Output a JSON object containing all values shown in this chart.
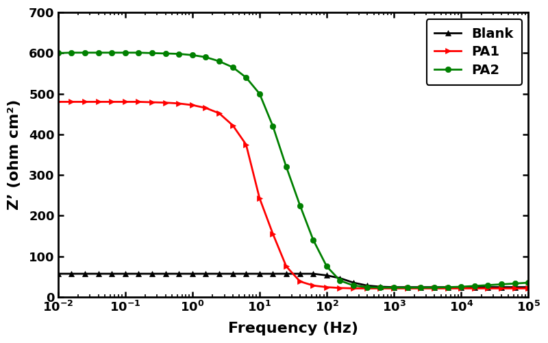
{
  "title": "",
  "xlabel": "Frequency (Hz)",
  "ylabel": "Z’ (ohm cm²)",
  "xlim": [
    0.01,
    100000
  ],
  "ylim": [
    0,
    700
  ],
  "yticks": [
    0,
    100,
    200,
    300,
    400,
    500,
    600,
    700
  ],
  "background_color": "#ffffff",
  "series": {
    "Blank": {
      "color": "#000000",
      "marker": "^",
      "markersize": 6,
      "linewidth": 2.0,
      "freq": [
        0.01,
        0.0158,
        0.025,
        0.04,
        0.063,
        0.1,
        0.158,
        0.25,
        0.4,
        0.63,
        1.0,
        1.58,
        2.5,
        4.0,
        6.3,
        10,
        15.8,
        25,
        40,
        63,
        100,
        158,
        251,
        398,
        631,
        1000,
        1585,
        2512,
        3981,
        6310,
        10000,
        15849,
        25119,
        39811,
        63096,
        100000
      ],
      "z_prime": [
        57,
        57,
        57,
        57,
        57,
        57,
        57,
        57,
        57,
        57,
        57,
        57,
        57,
        57,
        57,
        57,
        57,
        57,
        57,
        57,
        53,
        46,
        35,
        28,
        25,
        24,
        24,
        24,
        24,
        24,
        24,
        24,
        24,
        24,
        24,
        24
      ]
    },
    "PA1": {
      "color": "#ff0000",
      "marker": ">",
      "markersize": 6,
      "linewidth": 2.0,
      "freq": [
        0.01,
        0.0158,
        0.025,
        0.04,
        0.063,
        0.1,
        0.158,
        0.25,
        0.4,
        0.63,
        1.0,
        1.58,
        2.5,
        4.0,
        6.3,
        10,
        15.8,
        25,
        40,
        63,
        100,
        158,
        251,
        398,
        631,
        1000,
        1585,
        2512,
        3981,
        6310,
        10000,
        15849,
        25119,
        39811,
        63096,
        100000
      ],
      "z_prime": [
        480,
        480,
        480,
        480,
        480,
        480,
        480,
        479,
        478,
        476,
        472,
        465,
        452,
        422,
        375,
        243,
        155,
        75,
        38,
        28,
        24,
        22,
        21,
        21,
        21,
        21,
        21,
        21,
        21,
        21,
        21,
        21,
        21,
        21,
        21,
        21
      ]
    },
    "PA2": {
      "color": "#008000",
      "marker": "o",
      "markersize": 6,
      "linewidth": 2.0,
      "freq": [
        0.01,
        0.0158,
        0.025,
        0.04,
        0.063,
        0.1,
        0.158,
        0.25,
        0.4,
        0.63,
        1.0,
        1.58,
        2.5,
        4.0,
        6.3,
        10,
        15.8,
        25,
        40,
        63,
        100,
        158,
        251,
        398,
        631,
        1000,
        1585,
        2512,
        3981,
        6310,
        10000,
        15849,
        25119,
        39811,
        63096,
        100000
      ],
      "z_prime": [
        600,
        601,
        601,
        601,
        601,
        601,
        601,
        600,
        599,
        598,
        595,
        590,
        580,
        565,
        540,
        500,
        420,
        320,
        225,
        140,
        75,
        40,
        28,
        24,
        23,
        23,
        23,
        23,
        23,
        24,
        25,
        27,
        29,
        31,
        33,
        35
      ]
    }
  },
  "legend_loc": "upper right",
  "spine_linewidth": 2.0,
  "tick_labelsize": 13,
  "axis_labelsize": 16,
  "legend_fontsize": 14
}
